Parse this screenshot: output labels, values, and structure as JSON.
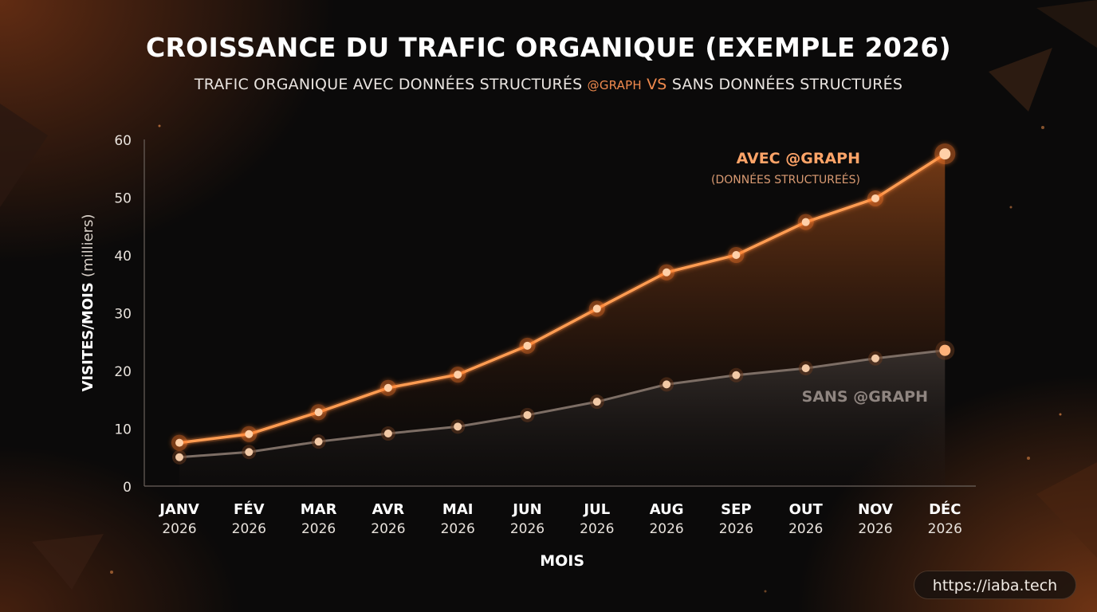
{
  "title": "CROISSANCE DU TRAFIC ORGANIQUE (EXEMPLE 2026)",
  "subtitle": {
    "part1": "TRAFIC ORGANIQUE AVEC DONNÉES STRUCTURÉS ",
    "highlight": "@GRAPH",
    "vs": " VS",
    "part2": " SANS DONNÉES STRUCTURÉS"
  },
  "url": "https://iaba.tech",
  "colors": {
    "accent": "#ff8a3d",
    "secondary": "#7a6a60",
    "background": "#0b0a0a"
  },
  "chart_data": {
    "type": "line",
    "categories": [
      "JANV",
      "FÉV",
      "MAR",
      "AVR",
      "MAI",
      "JUN",
      "JUL",
      "AUG",
      "SEP",
      "OUT",
      "NOV",
      "DÉC"
    ],
    "category_years": [
      "2026",
      "2026",
      "2026",
      "2026",
      "2026",
      "2026",
      "2026",
      "2026",
      "2026",
      "2026",
      "2026",
      "2026"
    ],
    "series": [
      {
        "name": "AVEC @GRAPH",
        "note": "(DONNÉES STRUCTUREÉS)",
        "values": [
          7.5,
          9,
          12.8,
          17,
          19.3,
          24.3,
          30.7,
          37,
          40,
          45.7,
          49.8,
          57.5
        ]
      },
      {
        "name": "SANS @GRAPH",
        "values": [
          5,
          5.9,
          7.7,
          9.1,
          10.3,
          12.3,
          14.6,
          17.6,
          19.2,
          20.4,
          22.1,
          23.5
        ]
      }
    ],
    "ylim": [
      0,
      60
    ],
    "yticks": [
      "0",
      "10",
      "20",
      "30",
      "40",
      "50",
      "60"
    ],
    "ylabel": "VISITES/MOIS",
    "ylabel_unit": "(milliers)",
    "xlabel": "MOIS",
    "grid": false
  }
}
